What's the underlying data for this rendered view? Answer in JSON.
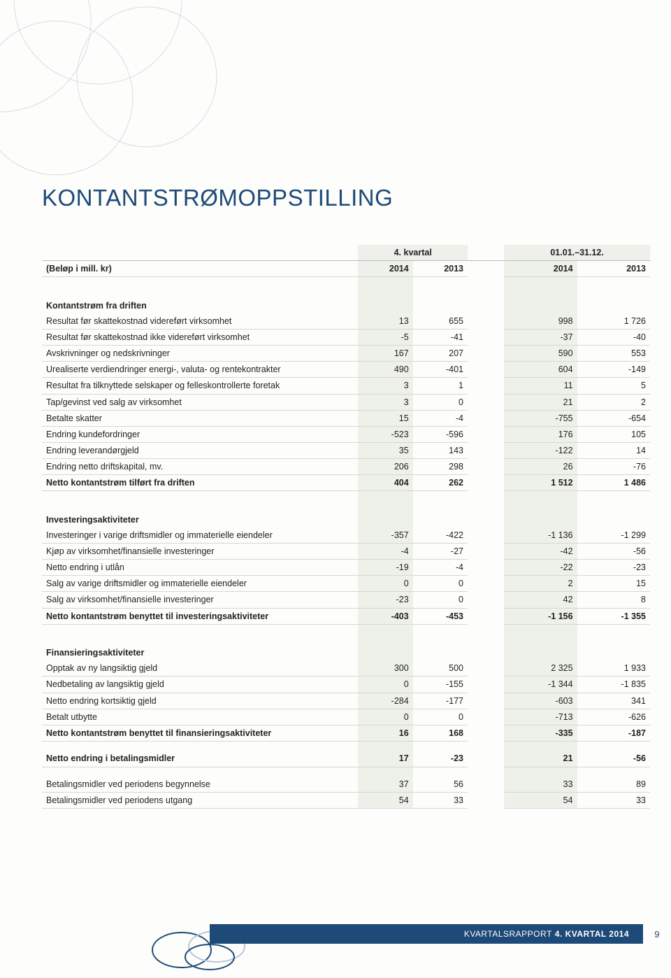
{
  "title": "KONTANTSTRØMOPPSTILLING",
  "header": {
    "unit_label": "(Beløp i mill. kr)",
    "group1": "4. kvartal",
    "group2": "01.01.–31.12.",
    "y_q2014": "2014",
    "y_q2013": "2013",
    "y_f2014": "2014",
    "y_f2013": "2013"
  },
  "sections": [
    {
      "heading": "Kontantstrøm fra driften",
      "rows": [
        {
          "label": "Resultat før skattekostnad videreført virksomhet",
          "v": [
            "13",
            "655",
            "998",
            "1 726"
          ]
        },
        {
          "label": "Resultat før skattekostnad ikke videreført virksomhet",
          "v": [
            "-5",
            "-41",
            "-37",
            "-40"
          ]
        },
        {
          "label": "Avskrivninger og nedskrivninger",
          "v": [
            "167",
            "207",
            "590",
            "553"
          ]
        },
        {
          "label": "Urealiserte verdiendringer energi-, valuta- og rentekontrakter",
          "v": [
            "490",
            "-401",
            "604",
            "-149"
          ]
        },
        {
          "label": "Resultat fra tilknyttede selskaper og felleskontrollerte foretak",
          "v": [
            "3",
            "1",
            "11",
            "5"
          ]
        },
        {
          "label": "Tap/gevinst ved salg av virksomhet",
          "v": [
            "3",
            "0",
            "21",
            "2"
          ]
        },
        {
          "label": "Betalte skatter",
          "v": [
            "15",
            "-4",
            "-755",
            "-654"
          ]
        },
        {
          "label": "Endring kundefordringer",
          "v": [
            "-523",
            "-596",
            "176",
            "105"
          ]
        },
        {
          "label": "Endring leverandørgjeld",
          "v": [
            "35",
            "143",
            "-122",
            "14"
          ]
        },
        {
          "label": "Endring netto driftskapital, mv.",
          "v": [
            "206",
            "298",
            "26",
            "-76"
          ]
        }
      ],
      "total": {
        "label": "Netto kontantstrøm tilført fra driften",
        "v": [
          "404",
          "262",
          "1 512",
          "1 486"
        ]
      }
    },
    {
      "heading": "Investeringsaktiviteter",
      "rows": [
        {
          "label": "Investeringer i varige driftsmidler og immaterielle eiendeler",
          "v": [
            "-357",
            "-422",
            "-1 136",
            "-1 299"
          ]
        },
        {
          "label": "Kjøp av virksomhet/finansielle investeringer",
          "v": [
            "-4",
            "-27",
            "-42",
            "-56"
          ]
        },
        {
          "label": "Netto endring i utlån",
          "v": [
            "-19",
            "-4",
            "-22",
            "-23"
          ]
        },
        {
          "label": "Salg av varige driftsmidler og immaterielle eiendeler",
          "v": [
            "0",
            "0",
            "2",
            "15"
          ]
        },
        {
          "label": "Salg av virksomhet/finansielle investeringer",
          "v": [
            "-23",
            "0",
            "42",
            "8"
          ]
        }
      ],
      "total": {
        "label": "Netto kontantstrøm benyttet til investeringsaktiviteter",
        "v": [
          "-403",
          "-453",
          "-1 156",
          "-1 355"
        ]
      }
    },
    {
      "heading": "Finansieringsaktiviteter",
      "rows": [
        {
          "label": "Opptak av ny langsiktig gjeld",
          "v": [
            "300",
            "500",
            "2 325",
            "1 933"
          ]
        },
        {
          "label": "Nedbetaling av langsiktig gjeld",
          "v": [
            "0",
            "-155",
            "-1 344",
            "-1 835"
          ]
        },
        {
          "label": "Netto endring kortsiktig gjeld",
          "v": [
            "-284",
            "-177",
            "-603",
            "341"
          ]
        },
        {
          "label": "Betalt utbytte",
          "v": [
            "0",
            "0",
            "-713",
            "-626"
          ]
        }
      ],
      "total": {
        "label": "Netto kontantstrøm benyttet til finansieringsaktiviteter",
        "v": [
          "16",
          "168",
          "-335",
          "-187"
        ]
      }
    }
  ],
  "net_change": {
    "label": "Netto endring i betalingsmidler",
    "v": [
      "17",
      "-23",
      "21",
      "-56"
    ]
  },
  "closing": [
    {
      "label": "Betalingsmidler ved periodens begynnelse",
      "v": [
        "37",
        "56",
        "33",
        "89"
      ]
    },
    {
      "label": "Betalingsmidler ved periodens utgang",
      "v": [
        "54",
        "33",
        "54",
        "33"
      ]
    }
  ],
  "footer": {
    "text_thin": "KVARTALSRAPPORT",
    "text_bold": "4. KVARTAL 2014",
    "page_number": "9"
  },
  "colors": {
    "brand_blue": "#1d4a78",
    "shade_bg": "#eef0ea",
    "page_bg": "#fdfdfb",
    "circle_light": "#d8dde3",
    "rule": "#d8d8d0"
  }
}
